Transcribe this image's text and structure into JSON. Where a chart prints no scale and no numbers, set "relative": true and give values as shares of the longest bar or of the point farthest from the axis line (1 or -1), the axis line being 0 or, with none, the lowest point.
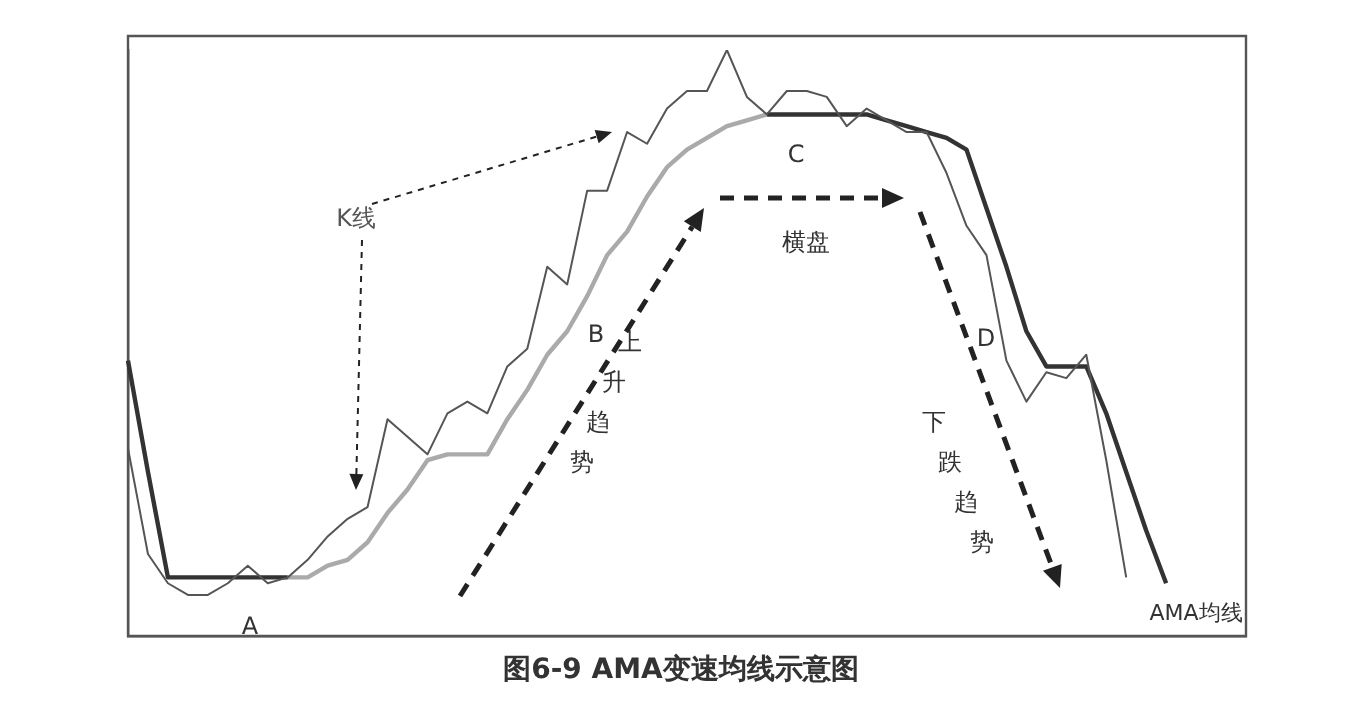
{
  "chart_data": {
    "type": "line",
    "relative": true,
    "title": "图6-9  AMA变速均线示意图",
    "marker": "none",
    "grid": false,
    "legend": false,
    "categories": [
      null,
      null,
      null,
      null,
      null,
      null,
      null,
      null,
      null,
      null,
      null,
      null,
      null,
      null,
      null,
      null,
      null,
      null,
      null,
      null,
      null,
      null,
      null,
      null,
      null,
      null,
      null,
      null,
      null,
      null,
      null,
      null,
      null,
      null,
      null,
      null,
      null,
      null,
      null,
      null,
      null,
      null,
      null,
      null,
      null,
      null,
      null,
      null,
      null,
      null,
      null,
      null,
      null,
      null,
      null,
      null,
      null
    ],
    "series": [
      {
        "name": "K线",
        "color": "#555555",
        "values": [
          0.32,
          0.14,
          0.09,
          0.07,
          0.07,
          0.09,
          0.12,
          0.09,
          0.1,
          0.13,
          0.17,
          0.2,
          0.22,
          0.37,
          0.34,
          0.31,
          0.38,
          0.4,
          0.38,
          0.46,
          0.49,
          0.63,
          0.6,
          0.76,
          0.76,
          0.86,
          0.84,
          0.9,
          0.93,
          0.93,
          1,
          0.92,
          0.89,
          0.93,
          0.93,
          0.92,
          0.87,
          0.9,
          0.88,
          0.86,
          0.86,
          0.79,
          0.7,
          0.65,
          0.47,
          0.4,
          0.45,
          0.44,
          0.48,
          0.3,
          0.1,
          null,
          null,
          null,
          null,
          null,
          null
        ]
      },
      {
        "color": "#333333",
        "values": [
          0.47,
          0.28,
          0.1,
          0.1,
          0.1,
          0.1,
          0.1,
          0.1,
          0.1,
          null,
          null,
          null,
          null,
          null,
          null,
          null,
          null,
          null,
          null,
          null,
          null,
          null,
          null,
          null,
          null,
          null,
          null,
          null,
          null,
          null,
          null,
          null,
          null,
          null,
          null,
          null,
          null,
          null,
          null,
          null,
          null,
          null,
          null,
          null,
          null,
          null,
          null,
          null,
          null,
          null,
          null,
          null,
          null,
          null,
          null,
          null,
          null
        ]
      },
      {
        "color": "#aaaaaa",
        "values": [
          null,
          null,
          null,
          null,
          null,
          null,
          null,
          null,
          0.1,
          0.1,
          0.12,
          0.13,
          0.16,
          0.21,
          0.25,
          0.3,
          0.31,
          0.31,
          0.31,
          0.37,
          0.42,
          0.48,
          0.52,
          0.58,
          0.65,
          0.69,
          0.75,
          0.8,
          0.83,
          0.85,
          0.87,
          0.88,
          0.89,
          null,
          null,
          null,
          null,
          null,
          null,
          null,
          null,
          null,
          null,
          null,
          null,
          null,
          null,
          null,
          null,
          null,
          null,
          null,
          null,
          null,
          null,
          null,
          null
        ]
      },
      {
        "name": "AMA均线",
        "color": "#333333",
        "values": [
          null,
          null,
          null,
          null,
          null,
          null,
          null,
          null,
          null,
          null,
          null,
          null,
          null,
          null,
          null,
          null,
          null,
          null,
          null,
          null,
          null,
          null,
          null,
          null,
          null,
          null,
          null,
          null,
          null,
          null,
          null,
          null,
          0.89,
          0.89,
          0.89,
          0.89,
          0.89,
          0.89,
          0.88,
          0.87,
          0.86,
          0.85,
          0.83,
          0.73,
          0.63,
          0.52,
          0.46,
          0.46,
          0.46,
          0.38,
          0.28,
          0.18,
          0.09,
          null,
          null,
          null,
          null
        ]
      }
    ],
    "annotations": [
      "A",
      "B",
      "C",
      "D",
      "横盘",
      "上升趋势",
      "下跌趋势"
    ]
  }
}
